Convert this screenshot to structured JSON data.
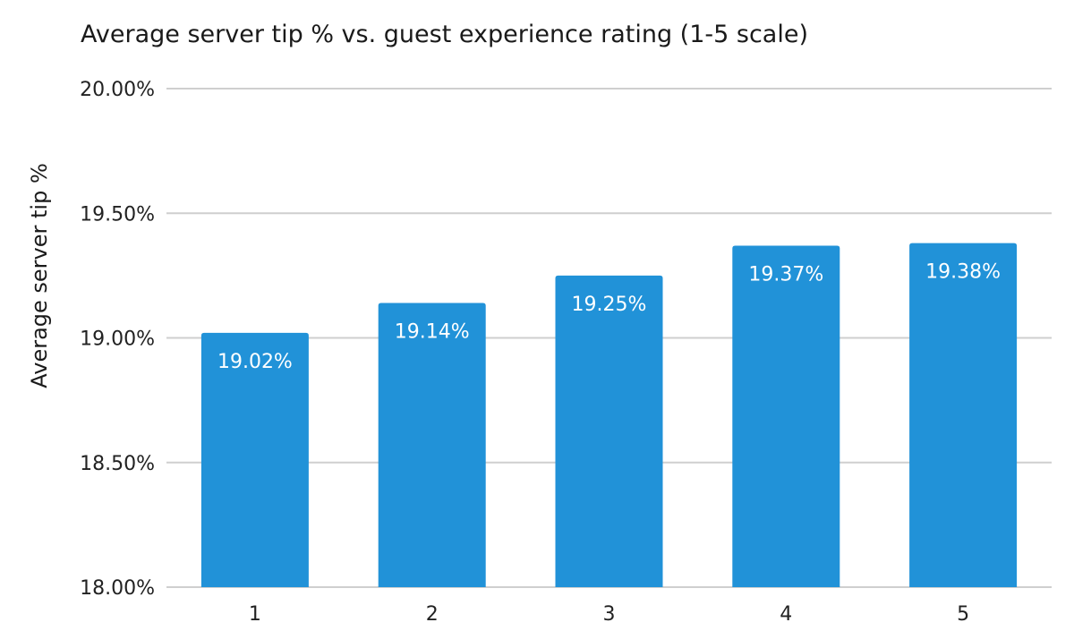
{
  "chart_data": {
    "type": "bar",
    "title": "Average server tip % vs. guest experience rating (1-5 scale)",
    "xlabel": "",
    "ylabel": "Average server tip %",
    "categories": [
      "1",
      "2",
      "3",
      "4",
      "5"
    ],
    "values": [
      19.02,
      19.14,
      19.25,
      19.37,
      19.38
    ],
    "data_labels": [
      "19.02%",
      "19.14%",
      "19.25%",
      "19.37%",
      "19.38%"
    ],
    "ylim": [
      18.0,
      20.0
    ],
    "yticks": [
      18.0,
      18.5,
      19.0,
      19.5,
      20.0
    ],
    "ytick_labels": [
      "18.00%",
      "18.50%",
      "19.00%",
      "19.50%",
      "20.00%"
    ],
    "grid": true,
    "legend": "none",
    "bar_color": "#2192d8",
    "gridline_color": "#cfcfcf"
  }
}
